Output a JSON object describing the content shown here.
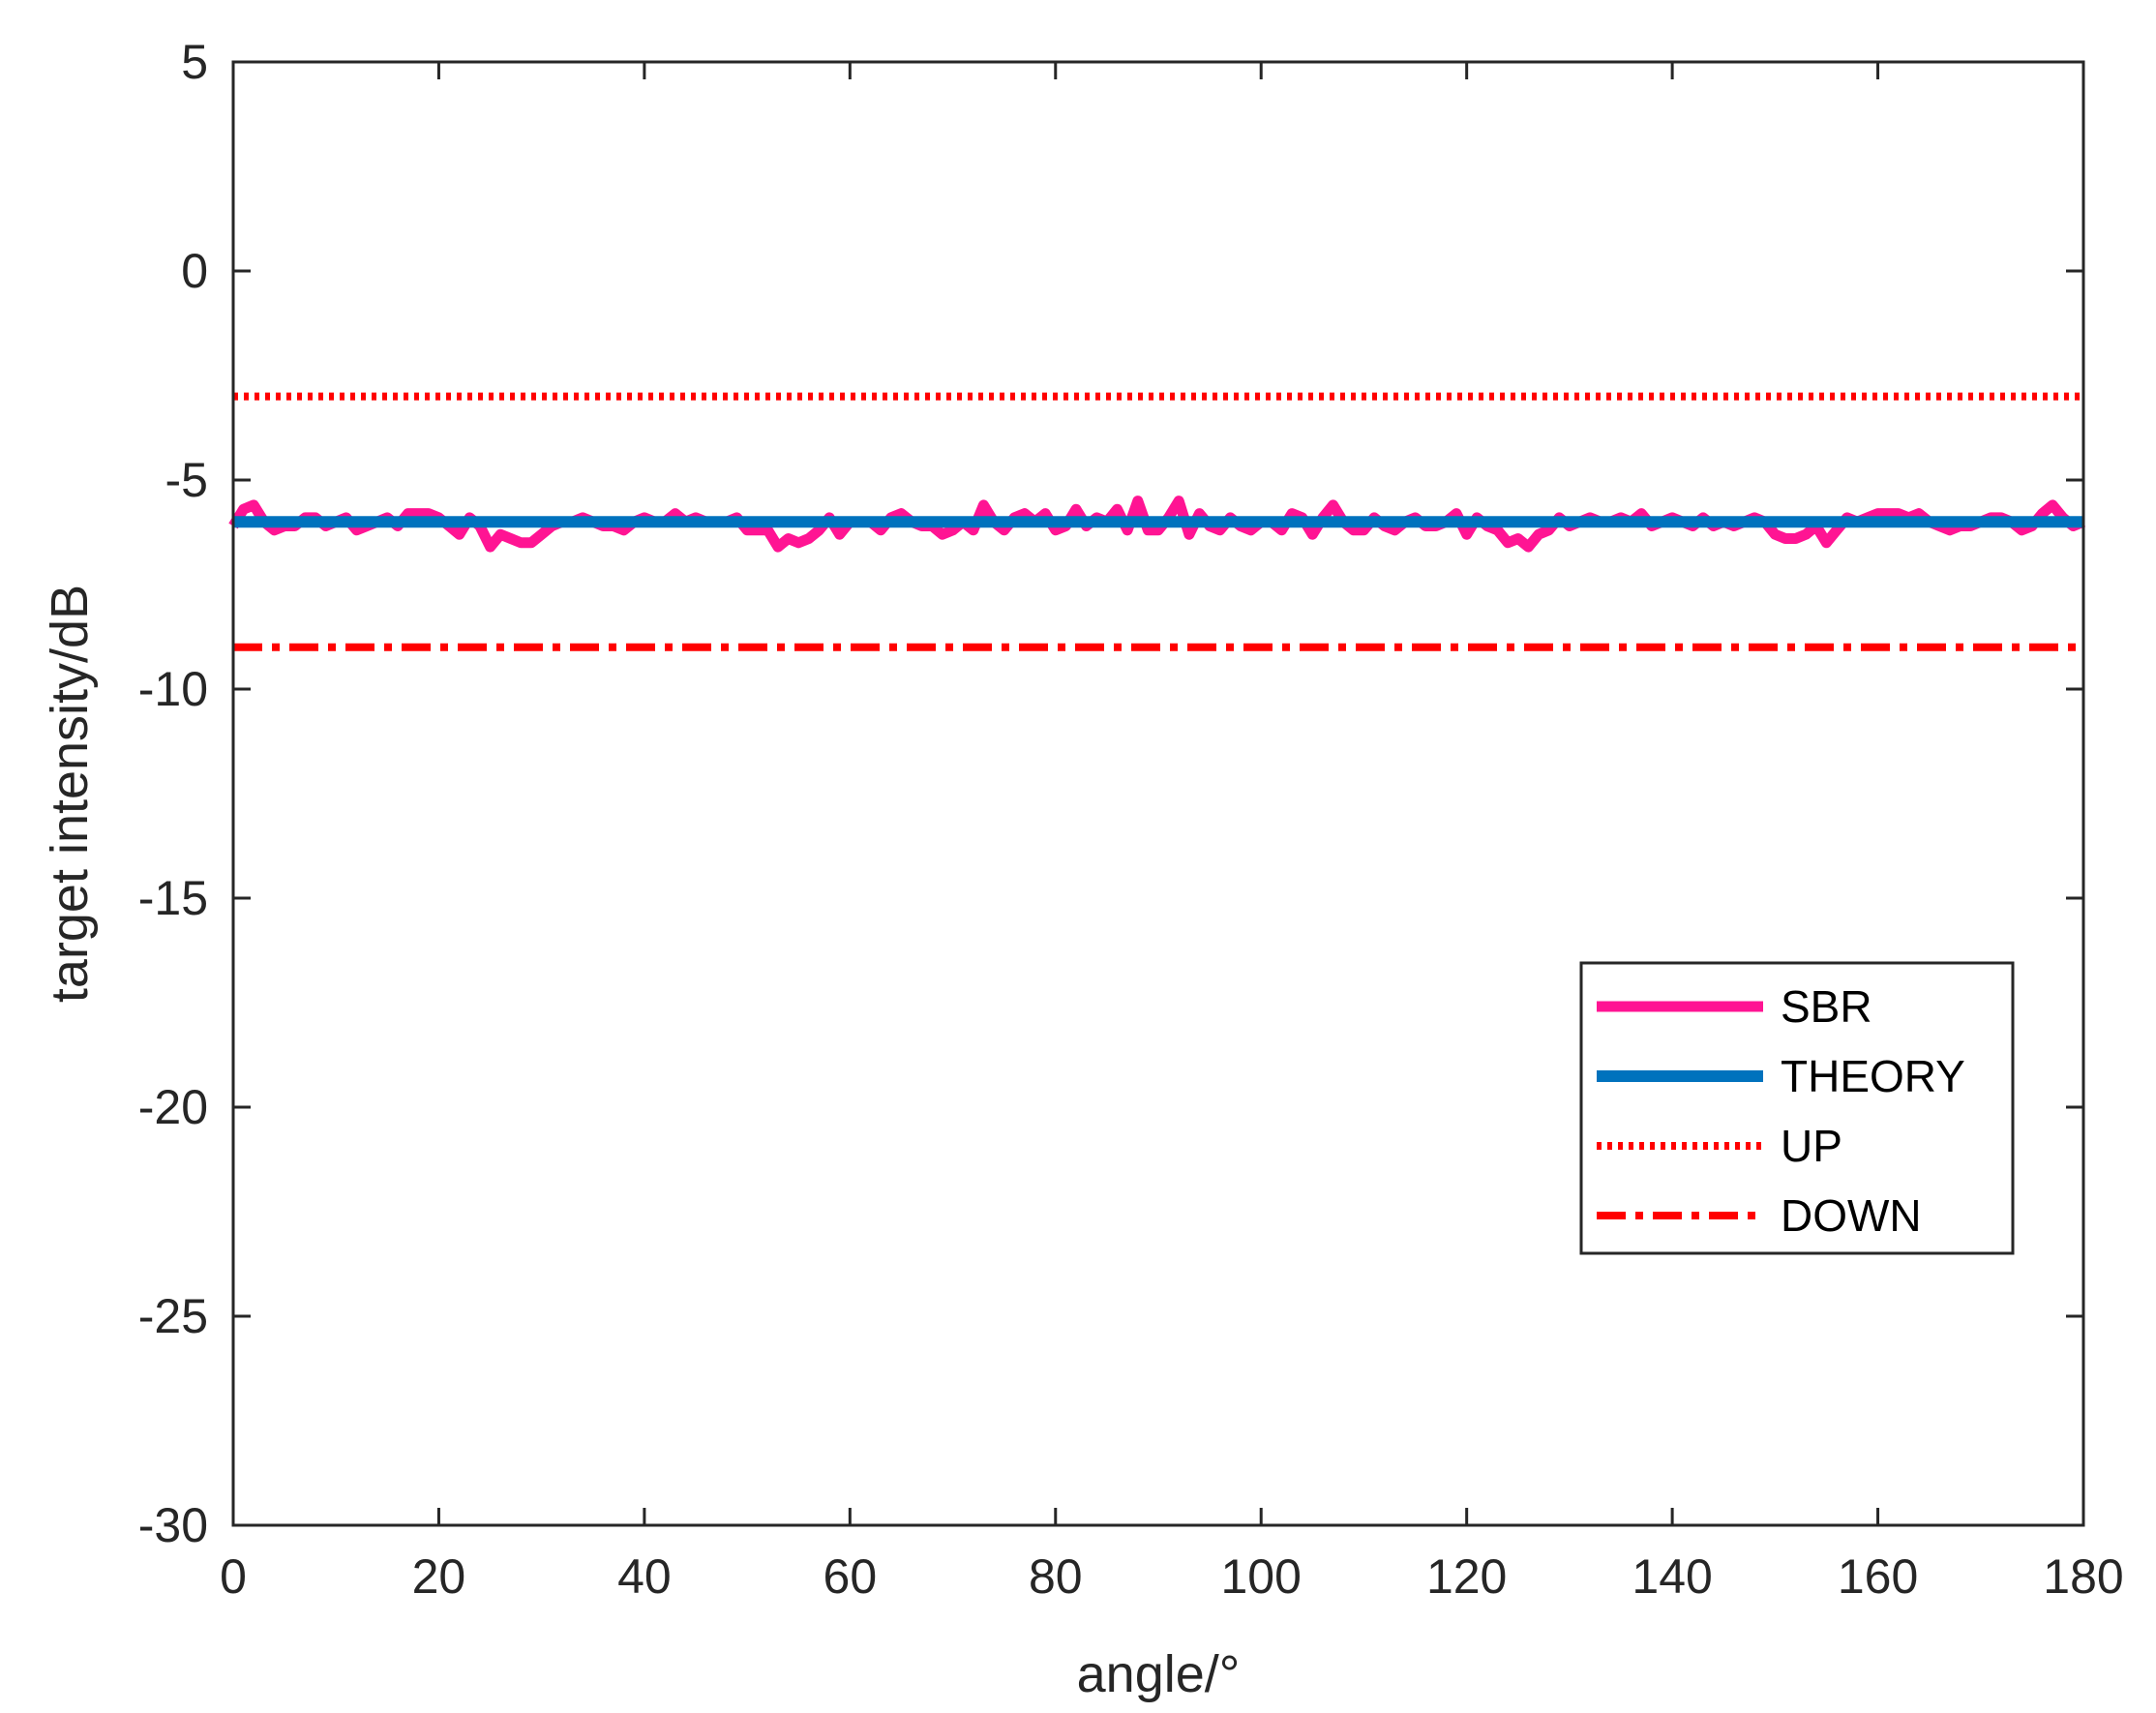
{
  "chart_data": {
    "type": "line",
    "title": "",
    "xlabel": "angle/°",
    "ylabel": "target intensity/dB",
    "xlim": [
      0,
      180
    ],
    "ylim": [
      -30,
      5
    ],
    "xticks": [
      0,
      20,
      40,
      60,
      80,
      100,
      120,
      140,
      160,
      180
    ],
    "yticks": [
      5,
      0,
      -5,
      -10,
      -15,
      -20,
      -25,
      -30
    ],
    "grid": false,
    "legend": {
      "placement": "right",
      "entries": [
        "SBR",
        "THEORY",
        "UP",
        "DOWN"
      ]
    },
    "series": [
      {
        "name": "SBR",
        "color": "#ff1493",
        "style": "solid",
        "x": [
          0,
          1,
          2,
          3,
          4,
          5,
          6,
          7,
          8,
          9,
          10,
          11,
          12,
          13,
          14,
          15,
          16,
          17,
          18,
          19,
          20,
          21,
          22,
          23,
          24,
          25,
          26,
          27,
          28,
          29,
          30,
          31,
          32,
          33,
          34,
          35,
          36,
          37,
          38,
          39,
          40,
          41,
          42,
          43,
          44,
          45,
          46,
          47,
          48,
          49,
          50,
          51,
          52,
          53,
          54,
          55,
          56,
          57,
          58,
          59,
          60,
          61,
          62,
          63,
          64,
          65,
          66,
          67,
          68,
          69,
          70,
          71,
          72,
          73,
          74,
          75,
          76,
          77,
          78,
          79,
          80,
          81,
          82,
          83,
          84,
          85,
          86,
          87,
          88,
          89,
          90,
          91,
          92,
          93,
          94,
          95,
          96,
          97,
          98,
          99,
          100,
          101,
          102,
          103,
          104,
          105,
          106,
          107,
          108,
          109,
          110,
          111,
          112,
          113,
          114,
          115,
          116,
          117,
          118,
          119,
          120,
          121,
          122,
          123,
          124,
          125,
          126,
          127,
          128,
          129,
          130,
          131,
          132,
          133,
          134,
          135,
          136,
          137,
          138,
          139,
          140,
          141,
          142,
          143,
          144,
          145,
          146,
          147,
          148,
          149,
          150,
          151,
          152,
          153,
          154,
          155,
          156,
          157,
          158,
          159,
          160,
          161,
          162,
          163,
          164,
          165,
          166,
          167,
          168,
          169,
          170,
          171,
          172,
          173,
          174,
          175,
          176,
          177,
          178,
          179,
          180
        ],
        "y": [
          -6.1,
          -5.7,
          -5.6,
          -6.0,
          -6.2,
          -6.1,
          -6.1,
          -5.9,
          -5.9,
          -6.1,
          -6.0,
          -5.9,
          -6.2,
          -6.1,
          -6.0,
          -5.9,
          -6.1,
          -5.8,
          -5.8,
          -5.8,
          -5.9,
          -6.1,
          -6.3,
          -5.9,
          -6.1,
          -6.6,
          -6.3,
          -6.4,
          -6.5,
          -6.5,
          -6.3,
          -6.1,
          -6.0,
          -6.0,
          -5.9,
          -6.0,
          -6.1,
          -6.1,
          -6.2,
          -6.0,
          -5.9,
          -6.0,
          -6.0,
          -5.8,
          -6.0,
          -5.9,
          -6.0,
          -6.0,
          -6.0,
          -5.9,
          -6.2,
          -6.2,
          -6.2,
          -6.6,
          -6.4,
          -6.5,
          -6.4,
          -6.2,
          -5.9,
          -6.3,
          -6.0,
          -6.0,
          -6.0,
          -6.2,
          -5.9,
          -5.8,
          -6.0,
          -6.1,
          -6.1,
          -6.3,
          -6.2,
          -6.0,
          -6.2,
          -5.6,
          -6.0,
          -6.2,
          -5.9,
          -5.8,
          -6.0,
          -5.8,
          -6.2,
          -6.1,
          -5.7,
          -6.1,
          -5.9,
          -6.0,
          -5.7,
          -6.2,
          -5.5,
          -6.2,
          -6.2,
          -5.9,
          -5.5,
          -6.3,
          -5.8,
          -6.1,
          -6.2,
          -5.9,
          -6.1,
          -6.2,
          -6.0,
          -6.0,
          -6.2,
          -5.8,
          -5.9,
          -6.3,
          -5.9,
          -5.6,
          -6.0,
          -6.2,
          -6.2,
          -5.9,
          -6.1,
          -6.2,
          -6.0,
          -5.9,
          -6.1,
          -6.1,
          -6.0,
          -5.8,
          -6.3,
          -5.9,
          -6.1,
          -6.2,
          -6.5,
          -6.4,
          -6.6,
          -6.3,
          -6.2,
          -5.9,
          -6.1,
          -6.0,
          -5.9,
          -6.0,
          -6.0,
          -5.9,
          -6.0,
          -5.8,
          -6.1,
          -6.0,
          -5.9,
          -6.0,
          -6.1,
          -5.9,
          -6.1,
          -6.0,
          -6.1,
          -6.0,
          -5.9,
          -6.0,
          -6.3,
          -6.4,
          -6.4,
          -6.3,
          -6.1,
          -6.5,
          -6.2,
          -5.9,
          -6.0,
          -5.9,
          -5.8,
          -5.8,
          -5.8,
          -5.9,
          -5.8,
          -6.0,
          -6.1,
          -6.2,
          -6.1,
          -6.1,
          -6.0,
          -5.9,
          -5.9,
          -6.0,
          -6.2,
          -6.1,
          -5.8,
          -5.6,
          -5.9,
          -6.1,
          -6.0
        ]
      },
      {
        "name": "THEORY",
        "color": "#0072bd",
        "style": "solid",
        "x": [
          0,
          180
        ],
        "y": [
          -6,
          -6
        ]
      },
      {
        "name": "UP",
        "color": "#ff0000",
        "style": "dotted",
        "x": [
          0,
          180
        ],
        "y": [
          -3,
          -3
        ]
      },
      {
        "name": "DOWN",
        "color": "#ff0000",
        "style": "dashdot",
        "x": [
          0,
          180
        ],
        "y": [
          -9,
          -9
        ]
      }
    ]
  }
}
